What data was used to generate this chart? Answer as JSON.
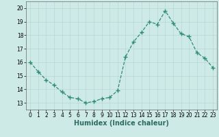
{
  "x": [
    0,
    1,
    2,
    3,
    4,
    5,
    6,
    7,
    8,
    9,
    10,
    11,
    12,
    13,
    14,
    15,
    16,
    17,
    18,
    19,
    20,
    21,
    22,
    23
  ],
  "y": [
    16.0,
    15.3,
    14.7,
    14.3,
    13.8,
    13.4,
    13.3,
    13.0,
    13.1,
    13.3,
    13.4,
    13.9,
    16.4,
    17.5,
    18.2,
    19.0,
    18.8,
    19.8,
    18.9,
    18.1,
    17.9,
    16.7,
    16.3,
    15.6
  ],
  "line_color": "#2e8b74",
  "marker": "+",
  "marker_size": 4,
  "bg_color": "#ceeae7",
  "grid_color": "#b8d8d5",
  "xlabel": "Humidex (Indice chaleur)",
  "xlim": [
    -0.5,
    23.5
  ],
  "ylim": [
    12.5,
    20.5
  ],
  "yticks": [
    13,
    14,
    15,
    16,
    17,
    18,
    19,
    20
  ],
  "xticks": [
    0,
    1,
    2,
    3,
    4,
    5,
    6,
    7,
    8,
    9,
    10,
    11,
    12,
    13,
    14,
    15,
    16,
    17,
    18,
    19,
    20,
    21,
    22,
    23
  ],
  "tick_fontsize": 5.5,
  "label_fontsize": 7.0,
  "linewidth": 0.9,
  "marker_linewidth": 1.0
}
